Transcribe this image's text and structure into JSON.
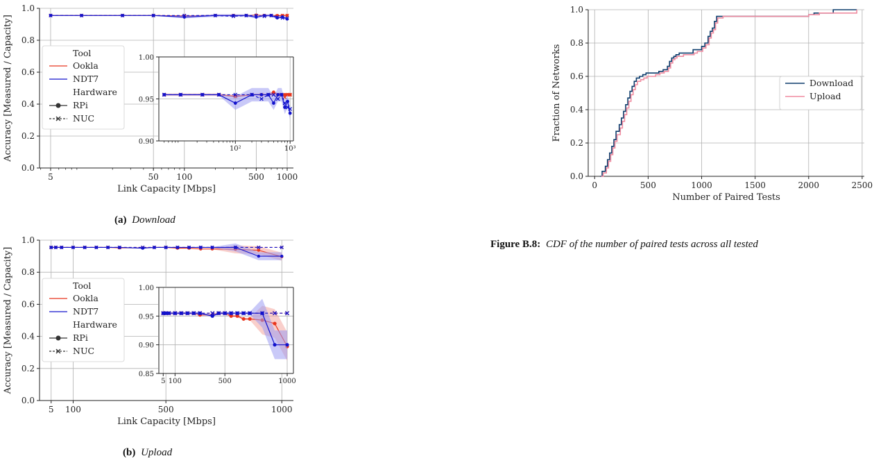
{
  "colors": {
    "ookla": "#e8351d",
    "ndt7": "#1212cc",
    "ndt7_band": "#9c9cf2",
    "ookla_band": "#f4a8a0",
    "download": "#0b3b6b",
    "upload": "#f08ca0",
    "grid": "#b0b0b0",
    "axis": "#222222"
  },
  "legend_left": {
    "tool_title": "Tool",
    "ookla": "Ookla",
    "ndt7": "NDT7",
    "hardware_title": "Hardware",
    "rpi": "RPi",
    "nuc": "NUC"
  },
  "captions": {
    "a_label": "(a)",
    "a_text": "Download",
    "b_label": "(b)",
    "b_text": "Upload",
    "fig_label": "Figure B.8:",
    "fig_text": "CDF of the number of paired tests across all tested"
  },
  "chart_data": [
    {
      "id": "download",
      "type": "line",
      "xscale": "log",
      "xlabel": "Link Capacity [Mbps]",
      "ylabel": "Accuracy [Measured / Capacity]",
      "xlim": [
        3.9,
        1150
      ],
      "ylim": [
        0.0,
        1.0
      ],
      "x_tick_values": [
        5,
        50,
        100,
        500,
        1000
      ],
      "x_tick_labels": [
        "5",
        "50",
        "100",
        "500",
        "1000"
      ],
      "y_tick_values": [
        0.0,
        0.2,
        0.4,
        0.6,
        0.8,
        1.0
      ],
      "y_tick_labels": [
        "0.0",
        "0.2",
        "0.4",
        "0.6",
        "0.8",
        "1.0"
      ],
      "grid": true,
      "legend_position": "left",
      "series": [
        {
          "name": "Ookla",
          "hardware": "RPi",
          "color": "ookla",
          "marker": "circle",
          "x": [
            5,
            10,
            25,
            50,
            100,
            200,
            300,
            400,
            500,
            600,
            700,
            800,
            900,
            1000
          ],
          "y": [
            0.955,
            0.955,
            0.955,
            0.955,
            0.953,
            0.955,
            0.955,
            0.955,
            0.958,
            0.955,
            0.955,
            0.955,
            0.955,
            0.955
          ]
        },
        {
          "name": "Ookla",
          "hardware": "NUC",
          "color": "ookla",
          "marker": "x",
          "x": [
            5,
            10,
            25,
            50,
            100,
            200,
            300,
            400,
            500,
            600,
            700,
            800,
            900,
            1000
          ],
          "y": [
            0.955,
            0.955,
            0.955,
            0.955,
            0.953,
            0.955,
            0.955,
            0.955,
            0.955,
            0.955,
            0.955,
            0.952,
            0.955,
            0.955
          ]
        },
        {
          "name": "NDT7",
          "hardware": "RPi",
          "color": "ndt7",
          "marker": "circle",
          "x": [
            5,
            10,
            25,
            50,
            100,
            200,
            300,
            400,
            500,
            600,
            700,
            800,
            900,
            1000
          ],
          "y": [
            0.955,
            0.955,
            0.955,
            0.955,
            0.945,
            0.955,
            0.955,
            0.955,
            0.945,
            0.955,
            0.955,
            0.94,
            0.947,
            0.933
          ]
        },
        {
          "name": "NDT7",
          "hardware": "NUC",
          "color": "ndt7",
          "marker": "x",
          "x": [
            5,
            10,
            25,
            50,
            100,
            200,
            300,
            400,
            500,
            600,
            700,
            800,
            900,
            1000
          ],
          "y": [
            0.955,
            0.955,
            0.955,
            0.955,
            0.955,
            0.955,
            0.95,
            0.955,
            0.955,
            0.95,
            0.955,
            0.945,
            0.94,
            0.938
          ]
        }
      ],
      "inset": {
        "xscale": "log",
        "xlim": [
          4,
          1150
        ],
        "ylim": [
          0.9,
          1.0
        ],
        "x_tick_values": [
          100,
          1000
        ],
        "x_tick_labels": [
          "10²",
          "10³"
        ],
        "y_tick_values": [
          0.9,
          0.95,
          1.0
        ],
        "y_tick_labels": [
          "0.90",
          "0.95",
          "1.00"
        ]
      }
    },
    {
      "id": "upload",
      "type": "line",
      "xscale": "linear",
      "xlabel": "Link Capacity [Mbps]",
      "ylabel": "Accuracy [Measured / Capacity]",
      "xlim": [
        -45,
        1050
      ],
      "ylim": [
        0.0,
        1.0
      ],
      "x_tick_values": [
        5,
        100,
        500,
        1000
      ],
      "x_tick_labels": [
        "5",
        "100",
        "500",
        "1000"
      ],
      "y_tick_values": [
        0.0,
        0.2,
        0.4,
        0.6,
        0.8,
        1.0
      ],
      "y_tick_labels": [
        "0.0",
        "0.2",
        "0.4",
        "0.6",
        "0.8",
        "1.0"
      ],
      "grid": true,
      "legend_position": "left",
      "series": [
        {
          "name": "Ookla",
          "hardware": "RPi",
          "color": "ookla",
          "marker": "circle",
          "x": [
            5,
            25,
            50,
            100,
            150,
            200,
            250,
            300,
            400,
            450,
            500,
            550,
            600,
            650,
            700,
            800,
            900,
            1000
          ],
          "y": [
            0.955,
            0.955,
            0.955,
            0.955,
            0.955,
            0.955,
            0.955,
            0.952,
            0.952,
            0.955,
            0.955,
            0.95,
            0.95,
            0.945,
            0.945,
            0.943,
            0.937,
            0.897
          ]
        },
        {
          "name": "Ookla",
          "hardware": "NUC",
          "color": "ookla",
          "marker": "x",
          "x": [
            5,
            25,
            50,
            100,
            150,
            200,
            250,
            300,
            400,
            450,
            500,
            550,
            600,
            650,
            700,
            800,
            900,
            1000
          ],
          "y": [
            0.955,
            0.955,
            0.955,
            0.955,
            0.955,
            0.955,
            0.955,
            0.955,
            0.955,
            0.955,
            0.955,
            0.955,
            0.955,
            0.955,
            0.955,
            0.955,
            0.955,
            0.955
          ]
        },
        {
          "name": "NDT7",
          "hardware": "RPi",
          "color": "ndt7",
          "marker": "circle",
          "x": [
            5,
            25,
            50,
            100,
            150,
            200,
            250,
            300,
            400,
            450,
            500,
            550,
            600,
            650,
            700,
            800,
            900,
            1000
          ],
          "y": [
            0.955,
            0.955,
            0.955,
            0.955,
            0.955,
            0.955,
            0.955,
            0.955,
            0.95,
            0.955,
            0.955,
            0.955,
            0.955,
            0.955,
            0.955,
            0.955,
            0.9,
            0.9
          ]
        },
        {
          "name": "NDT7",
          "hardware": "NUC",
          "color": "ndt7",
          "marker": "x",
          "x": [
            5,
            25,
            50,
            100,
            150,
            200,
            250,
            300,
            400,
            450,
            500,
            550,
            600,
            650,
            700,
            800,
            900,
            1000
          ],
          "y": [
            0.955,
            0.955,
            0.955,
            0.955,
            0.955,
            0.955,
            0.955,
            0.955,
            0.955,
            0.955,
            0.955,
            0.955,
            0.955,
            0.955,
            0.955,
            0.955,
            0.955,
            0.955
          ]
        }
      ],
      "inset": {
        "xscale": "linear",
        "xlim": [
          -30,
          1050
        ],
        "ylim": [
          0.85,
          1.0
        ],
        "x_tick_values": [
          5,
          100,
          500,
          1000
        ],
        "x_tick_labels": [
          "5",
          "100",
          "500",
          "1000"
        ],
        "y_tick_values": [
          0.85,
          0.9,
          0.95,
          1.0
        ],
        "y_tick_labels": [
          "0.85",
          "0.90",
          "0.95",
          "1.00"
        ]
      }
    },
    {
      "id": "cdf",
      "type": "line",
      "xlabel": "Number of Paired Tests",
      "ylabel": "Fraction of Networks",
      "xlim": [
        -60,
        2520
      ],
      "ylim": [
        0.0,
        1.0
      ],
      "x_tick_values": [
        0,
        500,
        1000,
        1500,
        2000,
        2500
      ],
      "x_tick_labels": [
        "0",
        "500",
        "1000",
        "1500",
        "2000",
        "2500"
      ],
      "y_tick_values": [
        0.0,
        0.2,
        0.4,
        0.6,
        0.8,
        1.0
      ],
      "y_tick_labels": [
        "0.0",
        "0.2",
        "0.4",
        "0.6",
        "0.8",
        "1.0"
      ],
      "grid": true,
      "legend_position": "right",
      "series": [
        {
          "name": "Download",
          "color": "download",
          "x": [
            50,
            70,
            100,
            120,
            140,
            160,
            180,
            200,
            230,
            250,
            270,
            290,
            310,
            330,
            350,
            370,
            390,
            420,
            450,
            480,
            520,
            560,
            600,
            640,
            680,
            700,
            720,
            740,
            760,
            790,
            820,
            870,
            920,
            950,
            1000,
            1030,
            1060,
            1080,
            1100,
            1120,
            1140,
            1200,
            1500,
            1800,
            2000,
            2050,
            2230,
            2450
          ],
          "y": [
            0.0,
            0.03,
            0.06,
            0.1,
            0.14,
            0.18,
            0.22,
            0.27,
            0.31,
            0.35,
            0.39,
            0.43,
            0.47,
            0.51,
            0.54,
            0.57,
            0.59,
            0.6,
            0.61,
            0.62,
            0.62,
            0.62,
            0.63,
            0.64,
            0.66,
            0.69,
            0.71,
            0.72,
            0.73,
            0.74,
            0.74,
            0.74,
            0.76,
            0.76,
            0.78,
            0.8,
            0.84,
            0.87,
            0.89,
            0.93,
            0.96,
            0.96,
            0.96,
            0.96,
            0.97,
            0.98,
            1.0,
            1.0
          ]
        },
        {
          "name": "Upload",
          "color": "upload",
          "x": [
            60,
            80,
            110,
            130,
            150,
            170,
            190,
            210,
            240,
            260,
            280,
            300,
            320,
            340,
            360,
            380,
            400,
            430,
            460,
            490,
            530,
            570,
            610,
            650,
            690,
            710,
            730,
            750,
            770,
            800,
            830,
            880,
            930,
            960,
            1010,
            1040,
            1070,
            1090,
            1110,
            1130,
            1150,
            1200,
            1500,
            1800,
            2000,
            2100,
            2300,
            2450
          ],
          "y": [
            0.0,
            0.02,
            0.05,
            0.09,
            0.13,
            0.17,
            0.21,
            0.25,
            0.29,
            0.33,
            0.37,
            0.41,
            0.45,
            0.49,
            0.52,
            0.55,
            0.57,
            0.58,
            0.59,
            0.6,
            0.6,
            0.61,
            0.62,
            0.63,
            0.65,
            0.68,
            0.7,
            0.71,
            0.72,
            0.72,
            0.73,
            0.73,
            0.74,
            0.75,
            0.77,
            0.79,
            0.83,
            0.86,
            0.88,
            0.92,
            0.95,
            0.96,
            0.96,
            0.96,
            0.97,
            0.98,
            0.98,
            1.0
          ]
        }
      ]
    }
  ]
}
